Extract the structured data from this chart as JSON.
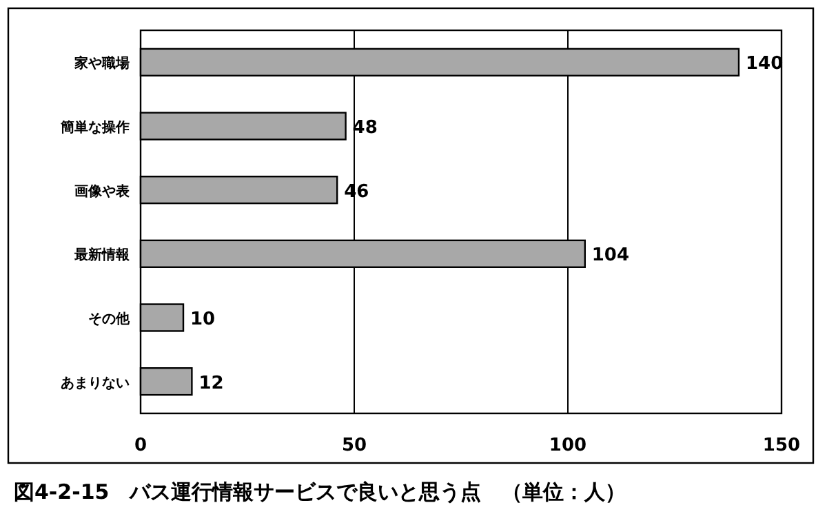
{
  "chart_data": {
    "type": "bar",
    "orientation": "horizontal",
    "title": "図4-2-15　バス運行情報サービスで良いと思う点　（単位：人）",
    "categories": [
      "家や職場",
      "簡単な操作",
      "画像や表",
      "最新情報",
      "その他",
      "あまりない"
    ],
    "values": [
      140,
      48,
      46,
      104,
      10,
      12
    ],
    "color": "#a8a8a8",
    "xlim": [
      0,
      150
    ],
    "xticks": [
      0,
      50,
      100,
      150
    ],
    "grid": "x",
    "data_labels": true
  }
}
